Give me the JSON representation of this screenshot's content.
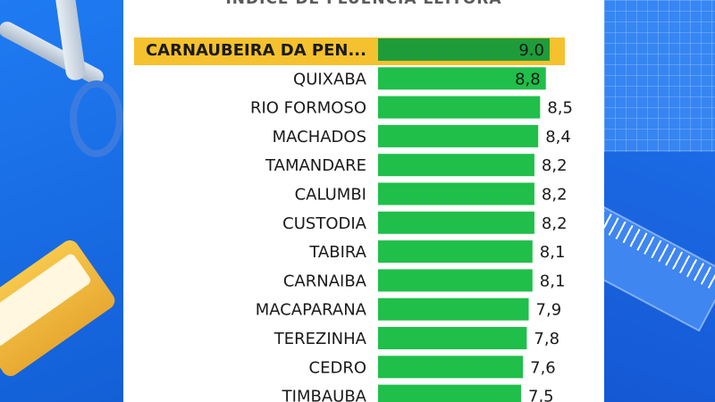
{
  "chart_data": {
    "type": "bar",
    "orientation": "horizontal",
    "title": "ÍNDICE DE FLUÊNCIA LEITORA",
    "categories": [
      "CARNAUBEIRA DA PEN...",
      "QUIXABA",
      "RIO FORMOSO",
      "MACHADOS",
      "TAMANDARE",
      "CALUMBI",
      "CUSTODIA",
      "TABIRA",
      "CARNAIBA",
      "MACAPARANA",
      "TEREZINHA",
      "CEDRO",
      "TIMBAUBA"
    ],
    "values": [
      9.0,
      8.8,
      8.5,
      8.4,
      8.2,
      8.2,
      8.2,
      8.1,
      8.1,
      7.9,
      7.8,
      7.6,
      7.5
    ],
    "value_labels": [
      "9.0",
      "8,8",
      "8,5",
      "8,4",
      "8,2",
      "8,2",
      "8,2",
      "8,1",
      "8,1",
      "7,9",
      "7,8",
      "7,6",
      "7,5"
    ],
    "highlighted_category": "CARNAUBEIRA DA PEN...",
    "xlim": [
      0,
      9.0
    ],
    "grid": false,
    "colors": {
      "bar": "#1fbf4a",
      "bar_highlight": "#1f9c3a",
      "highlight_background": "#f5c12e",
      "label_text": "#1a1a1a"
    }
  }
}
